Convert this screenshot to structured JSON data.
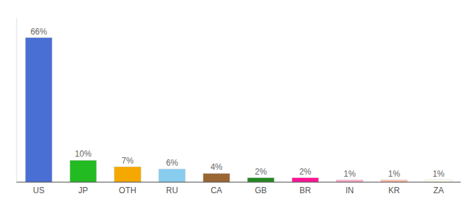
{
  "chart_data": {
    "type": "bar",
    "categories": [
      "US",
      "JP",
      "OTH",
      "RU",
      "CA",
      "GB",
      "BR",
      "IN",
      "KR",
      "ZA"
    ],
    "values": [
      66,
      10,
      7,
      6,
      4,
      2,
      2,
      1,
      1,
      1
    ],
    "value_labels": [
      "66%",
      "10%",
      "7%",
      "6%",
      "4%",
      "2%",
      "2%",
      "1%",
      "1%",
      "1%"
    ],
    "colors": [
      "#4a6fd4",
      "#22bb22",
      "#f5a800",
      "#88ccee",
      "#996633",
      "#228822",
      "#ff1493",
      "#ffaacc",
      "#ffbbaa",
      "#fffff0"
    ],
    "ylim": [
      0,
      75
    ],
    "data_labels": true,
    "tick_labels": "x",
    "grid": false
  }
}
